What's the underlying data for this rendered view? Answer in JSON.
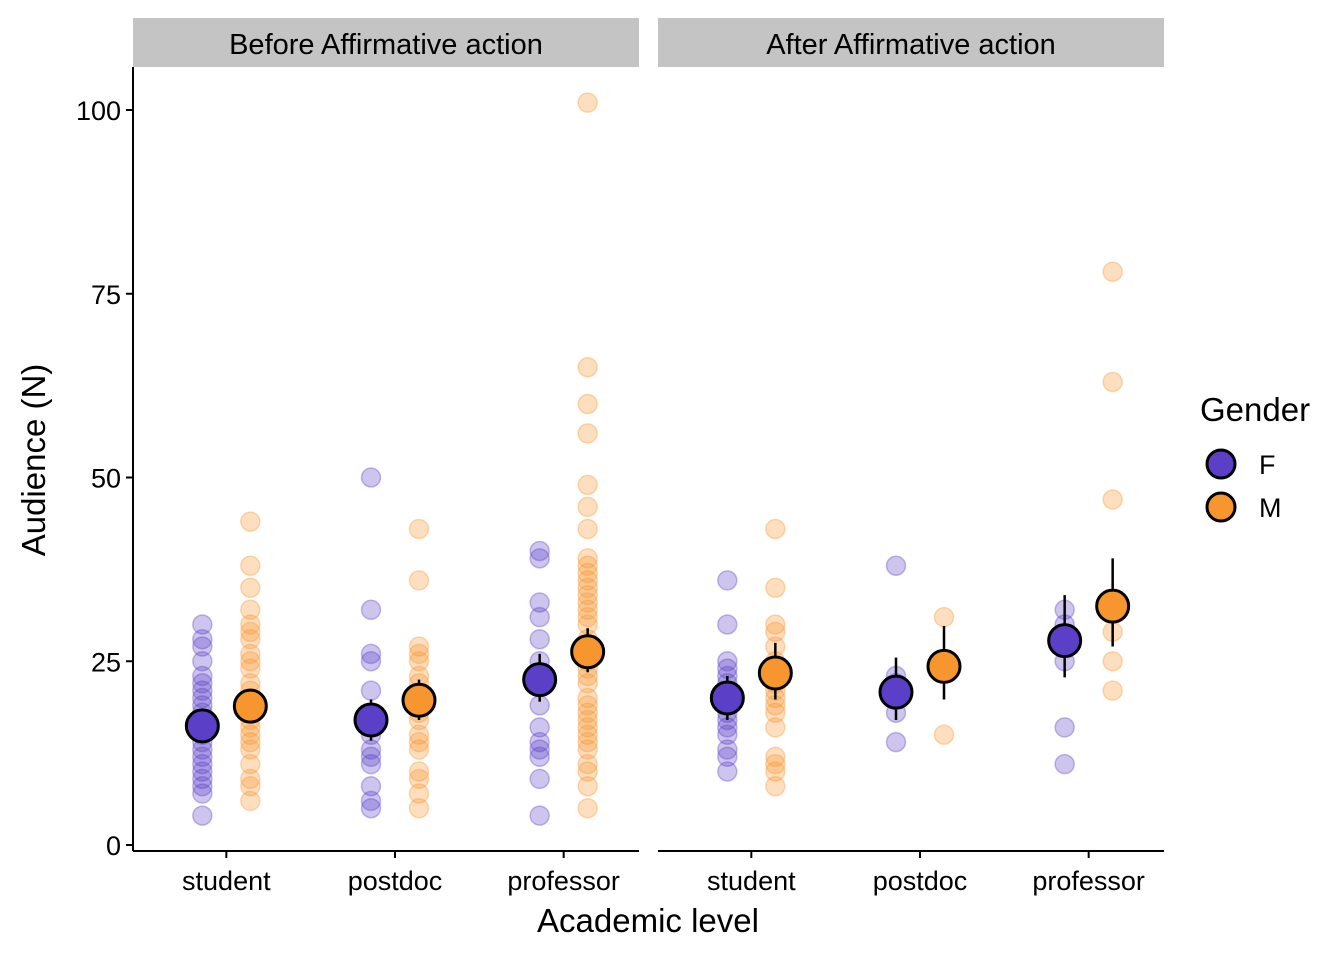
{
  "chart_data": {
    "type": "scatter",
    "xlabel": "Academic level",
    "ylabel": "Audience (N)",
    "ylim": [
      0,
      105
    ],
    "y_ticks": [
      0,
      25,
      50,
      75,
      100
    ],
    "categories": [
      "student",
      "postdoc",
      "professor"
    ],
    "grid": false,
    "legend": {
      "title": "Gender",
      "placement": "right",
      "entries": [
        "F",
        "M"
      ]
    },
    "colors": {
      "F": "#5b3fc7",
      "M": "#f7952f"
    },
    "panels": [
      {
        "label": "Before Affirmative action",
        "groups": [
          {
            "category": "student",
            "gender": "F",
            "mean": 16.2,
            "ci": [
              14.5,
              18.0
            ],
            "points": [
              4,
              7,
              8,
              9,
              10,
              11,
              12,
              13,
              14,
              15,
              16,
              17,
              18,
              19,
              20,
              21,
              22,
              23,
              25,
              27,
              28,
              30
            ]
          },
          {
            "category": "student",
            "gender": "M",
            "mean": 18.9,
            "ci": [
              17.2,
              20.6
            ],
            "points": [
              6,
              8,
              9,
              11,
              13,
              14,
              15,
              16,
              17,
              18,
              19,
              20,
              21,
              22,
              24,
              25,
              26,
              28,
              29,
              30,
              32,
              35,
              38,
              44
            ]
          },
          {
            "category": "postdoc",
            "gender": "F",
            "mean": 17.0,
            "ci": [
              14.2,
              19.8
            ],
            "points": [
              5,
              6,
              8,
              11,
              12,
              13,
              15,
              17,
              21,
              25,
              26,
              32,
              50
            ]
          },
          {
            "category": "postdoc",
            "gender": "M",
            "mean": 19.7,
            "ci": [
              17.0,
              22.5
            ],
            "points": [
              5,
              7,
              9,
              10,
              13,
              14,
              15,
              17,
              18,
              19,
              20,
              22,
              23,
              25,
              26,
              27,
              36,
              43
            ]
          },
          {
            "category": "professor",
            "gender": "F",
            "mean": 22.5,
            "ci": [
              19.5,
              26.0
            ],
            "points": [
              4,
              9,
              12,
              13,
              14,
              16,
              19,
              22,
              25,
              28,
              31,
              33,
              39,
              40
            ]
          },
          {
            "category": "professor",
            "gender": "M",
            "mean": 26.3,
            "ci": [
              23.5,
              29.5
            ],
            "points": [
              5,
              8,
              10,
              11,
              13,
              14,
              15,
              16,
              17,
              18,
              19,
              20,
              22,
              23,
              24,
              25,
              26,
              27,
              28,
              30,
              31,
              32,
              33,
              34,
              35,
              36,
              37,
              38,
              39,
              43,
              46,
              49,
              56,
              60,
              65,
              101
            ]
          }
        ]
      },
      {
        "label": "After Affirmative action",
        "groups": [
          {
            "category": "student",
            "gender": "F",
            "mean": 20.0,
            "ci": [
              17.0,
              23.0
            ],
            "points": [
              10,
              12,
              13,
              15,
              16,
              17,
              18,
              19,
              20,
              21,
              22,
              23,
              24,
              25,
              30,
              36
            ]
          },
          {
            "category": "student",
            "gender": "M",
            "mean": 23.4,
            "ci": [
              19.8,
              27.5
            ],
            "points": [
              8,
              10,
              11,
              12,
              16,
              18,
              19,
              20,
              21,
              22,
              23,
              25,
              27,
              29,
              30,
              35,
              43
            ]
          },
          {
            "category": "postdoc",
            "gender": "F",
            "mean": 20.8,
            "ci": [
              17.0,
              25.5
            ],
            "points": [
              14,
              18,
              20,
              22,
              23,
              38
            ]
          },
          {
            "category": "postdoc",
            "gender": "M",
            "mean": 24.3,
            "ci": [
              19.8,
              29.8
            ],
            "points": [
              15,
              25,
              31
            ]
          },
          {
            "category": "professor",
            "gender": "F",
            "mean": 27.8,
            "ci": [
              22.8,
              34.0
            ],
            "points": [
              11,
              16,
              25,
              28,
              30,
              32
            ]
          },
          {
            "category": "professor",
            "gender": "M",
            "mean": 32.5,
            "ci": [
              27.0,
              39.0
            ],
            "points": [
              21,
              25,
              29,
              47,
              63,
              78
            ]
          }
        ]
      }
    ]
  }
}
